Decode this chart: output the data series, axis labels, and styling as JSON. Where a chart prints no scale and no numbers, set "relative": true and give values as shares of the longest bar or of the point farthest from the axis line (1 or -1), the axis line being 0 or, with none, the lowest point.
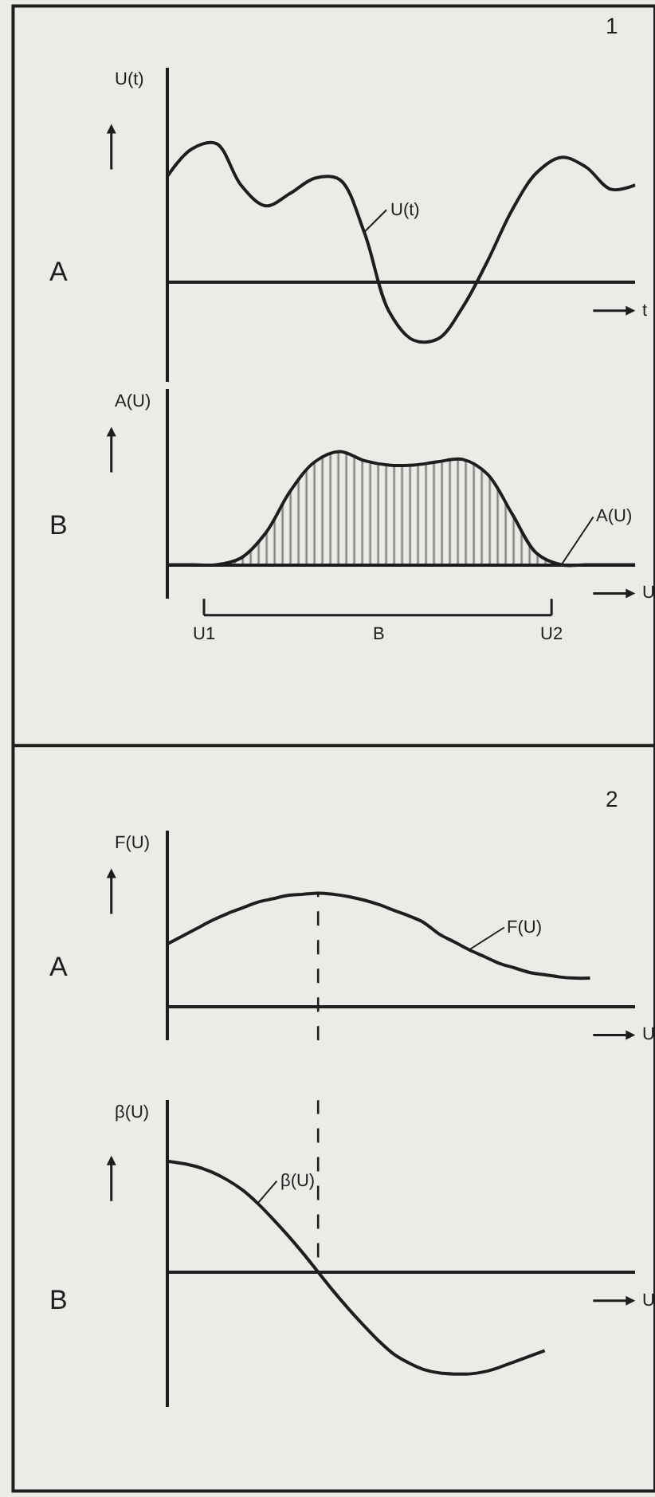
{
  "chart_data": [
    {
      "type": "line",
      "title": "A",
      "annotations": [
        "1"
      ],
      "ylabel": "U(t)",
      "xlabel": "t",
      "relative": true,
      "grid": false,
      "line_style": "solid",
      "marker": "none",
      "categories": [
        null,
        null,
        null,
        null,
        null,
        null,
        null,
        null,
        null,
        null,
        null,
        null,
        null,
        null,
        null,
        null,
        null,
        null,
        null,
        null
      ],
      "series": [
        {
          "name": "U(t)",
          "color": "#1e1e1e",
          "values": [
            0.76,
            0.96,
            1.0,
            0.7,
            0.55,
            0.64,
            0.75,
            0.74,
            0.36,
            -0.21,
            -0.42,
            -0.41,
            -0.18,
            0.15,
            0.52,
            0.79,
            0.9,
            0.83,
            0.67,
            0.7
          ]
        }
      ]
    },
    {
      "type": "area",
      "title": "B",
      "annotations": [
        "U1",
        "B",
        "U2"
      ],
      "ylabel": "A(U)",
      "xlabel": "U",
      "relative": true,
      "grid": false,
      "line_style": "solid",
      "marker": "none",
      "categories": [
        null,
        null,
        null,
        null,
        null,
        null,
        null,
        null,
        null,
        null,
        null,
        null,
        null,
        null,
        null,
        null,
        null,
        null,
        null,
        null
      ],
      "series": [
        {
          "name": "A(U)",
          "color": "#1e1e1e",
          "values": [
            0,
            0,
            0,
            0.06,
            0.28,
            0.65,
            0.91,
            1.0,
            0.92,
            0.88,
            0.88,
            0.91,
            0.93,
            0.8,
            0.45,
            0.1,
            0,
            0,
            0,
            0
          ]
        }
      ]
    },
    {
      "type": "line",
      "title": "A",
      "annotations": [
        "2"
      ],
      "ylabel": "F(U)",
      "xlabel": "U",
      "relative": true,
      "grid": false,
      "line_style": "solid",
      "marker": "none",
      "categories": [
        null,
        null,
        null,
        null,
        null,
        null,
        null,
        null,
        null,
        null,
        null,
        null,
        null,
        null,
        null,
        null,
        null,
        null,
        null,
        null,
        null,
        null,
        null,
        null,
        null,
        null,
        null,
        null,
        null,
        null,
        null,
        null
      ],
      "series": [
        {
          "name": "F(U)",
          "color": "#1e1e1e",
          "values": [
            0.55,
            0.62,
            0.69,
            0.76,
            0.82,
            0.87,
            0.92,
            0.95,
            0.98,
            0.99,
            1.0,
            0.99,
            0.97,
            0.94,
            0.9,
            0.85,
            0.8,
            0.74,
            0.64,
            0.57,
            0.5,
            0.44,
            0.38,
            0.34,
            0.3,
            0.28,
            0.26,
            0.25,
            0.25,
            null,
            null,
            null
          ]
        }
      ]
    },
    {
      "type": "line",
      "title": "B",
      "ylabel": "β(U)",
      "xlabel": "U",
      "relative": true,
      "grid": false,
      "line_style": "solid",
      "marker": "none",
      "categories": [
        null,
        null,
        null,
        null,
        null,
        null,
        null,
        null,
        null,
        null,
        null,
        null,
        null,
        null,
        null,
        null,
        null,
        null,
        null,
        null,
        null,
        null,
        null,
        null,
        null,
        null,
        null,
        null,
        null,
        null,
        null,
        null
      ],
      "series": [
        {
          "name": "β(U)",
          "color": "#1e1e1e",
          "values": [
            1.0,
            0.98,
            0.95,
            0.9,
            0.83,
            0.74,
            0.62,
            0.48,
            0.33,
            0.17,
            0,
            -0.17,
            -0.33,
            -0.48,
            -0.62,
            -0.74,
            -0.82,
            -0.88,
            -0.91,
            -0.92,
            -0.92,
            -0.9,
            -0.86,
            -0.81,
            -0.76,
            -0.71,
            null,
            null,
            null,
            null,
            null,
            null
          ]
        }
      ]
    }
  ]
}
